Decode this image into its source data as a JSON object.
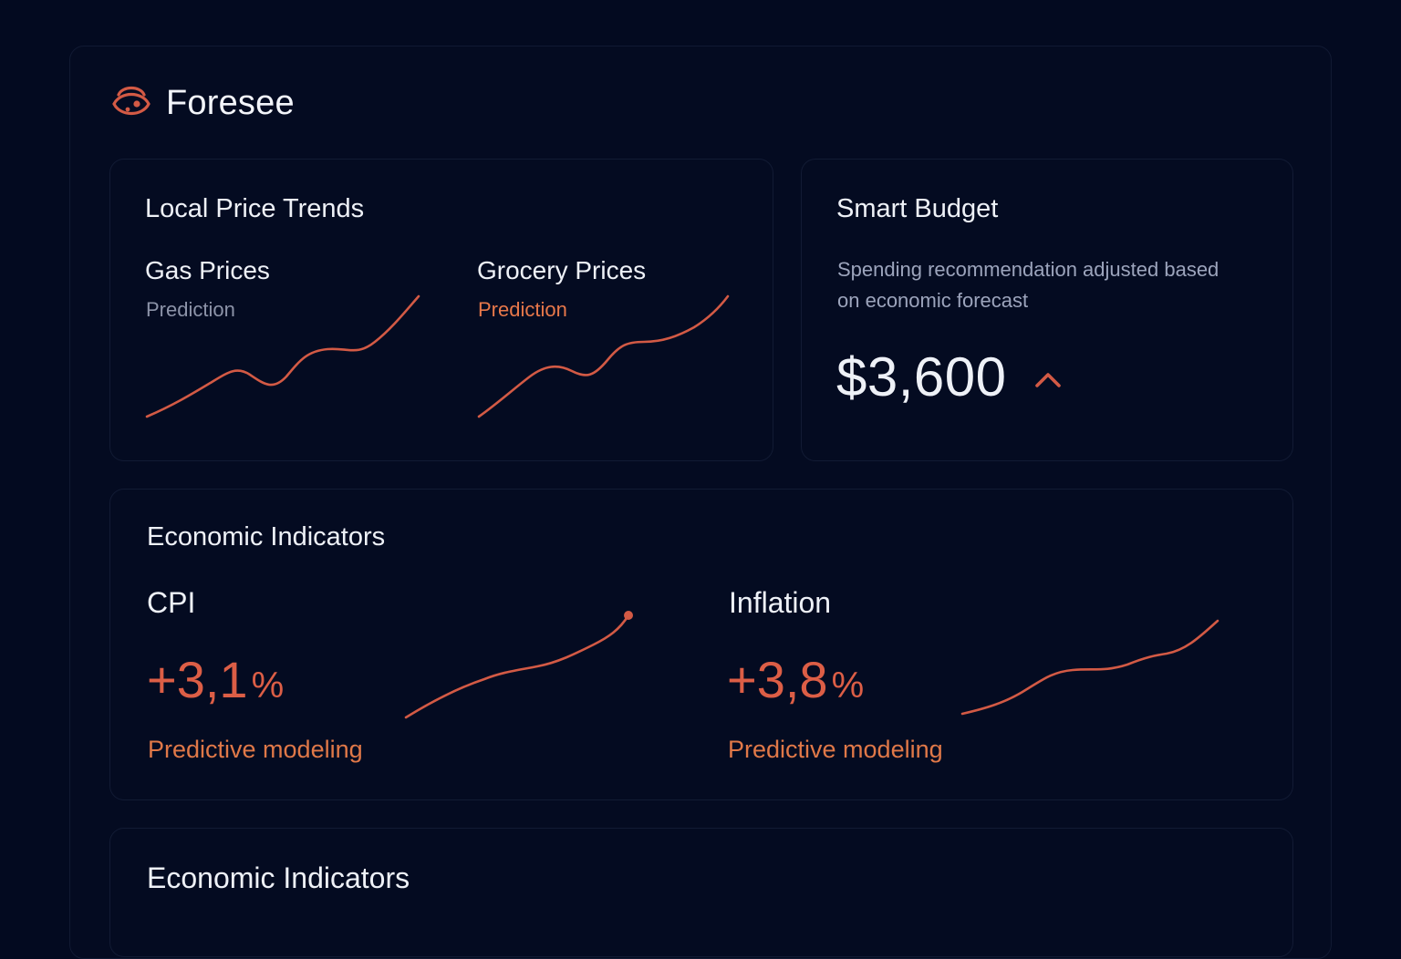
{
  "app": {
    "name": "Foresee",
    "logo_icon": "eye-logo-icon"
  },
  "colors": {
    "accent": "#d35a45",
    "accent_light": "#e8784a",
    "background": "#030a20",
    "card_border": "#121b34"
  },
  "price_trends": {
    "title": "Local Price Trends",
    "gas": {
      "title": "Gas Prices",
      "label": "Prediction",
      "trend": "rising"
    },
    "grocery": {
      "title": "Grocery Prices",
      "label": "Prediction",
      "trend": "rising"
    }
  },
  "budget": {
    "title": "Smart Budget",
    "description": "Spending recommendation adjusted based on economic forecast",
    "amount": "$3,600",
    "trend_icon": "chevron-up-icon"
  },
  "indicators": {
    "title": "Economic Indicators",
    "cpi": {
      "title": "CPI",
      "value": "+3,1",
      "unit": "%",
      "note": "Predictive modeling"
    },
    "inflation": {
      "title": "Inflation",
      "value": "+3,8",
      "unit": "%",
      "note": "Predictive modeling"
    }
  },
  "indicators_2": {
    "title": "Economic Indicators"
  }
}
